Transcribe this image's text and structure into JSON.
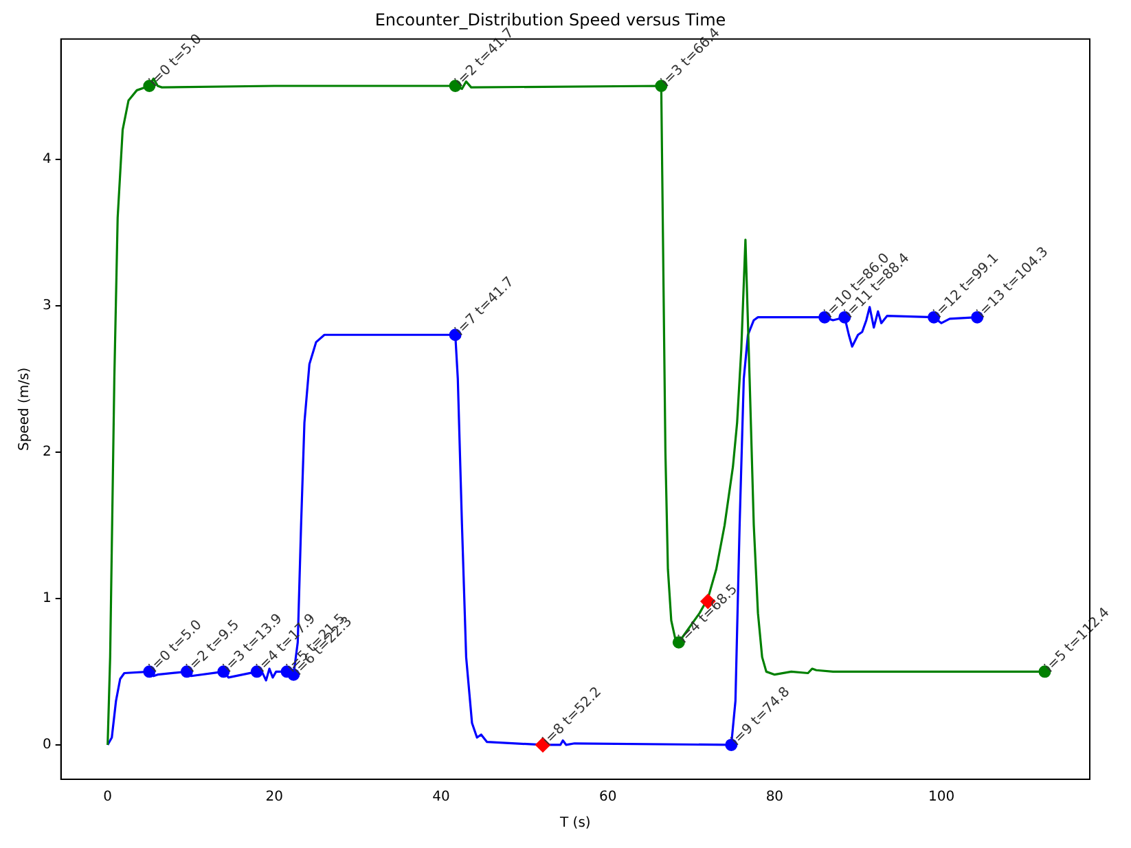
{
  "chart_data": {
    "type": "line",
    "title": "Encounter_Distribution Speed versus Time",
    "xlabel": "T (s)",
    "ylabel": "Speed (m/s)",
    "xlim": [
      -5.6,
      117.8
    ],
    "ylim": [
      -0.235,
      4.82
    ],
    "xticks": [
      0,
      20,
      40,
      60,
      80,
      100
    ],
    "yticks": [
      0,
      1,
      2,
      3,
      4
    ],
    "grid": false,
    "legend": false,
    "marker": "none",
    "line_style": "solid",
    "series": [
      {
        "color": "#008000",
        "x": [
          0,
          0.3,
          0.8,
          1.2,
          1.8,
          2.5,
          3.5,
          5,
          5.5,
          6,
          6.5,
          20,
          41.7,
          42.5,
          43,
          43.6,
          66.4,
          66.6,
          66.9,
          67.2,
          67.6,
          68.1,
          68.5,
          69.5,
          71,
          72,
          73,
          74,
          75,
          75.5,
          76,
          76.5,
          77,
          77.5,
          78,
          78.5,
          79,
          80,
          82,
          84,
          84.5,
          85,
          87,
          112.4
        ],
        "values": [
          0,
          0.6,
          2.5,
          3.6,
          4.2,
          4.4,
          4.47,
          4.5,
          4.55,
          4.5,
          4.49,
          4.5,
          4.5,
          4.48,
          4.53,
          4.49,
          4.5,
          3.5,
          2.0,
          1.2,
          0.85,
          0.72,
          0.7,
          0.78,
          0.9,
          1.0,
          1.2,
          1.5,
          1.9,
          2.2,
          2.7,
          3.45,
          2.5,
          1.5,
          0.9,
          0.6,
          0.5,
          0.48,
          0.5,
          0.49,
          0.52,
          0.51,
          0.5,
          0.5
        ]
      },
      {
        "color": "#0000ff",
        "x": [
          0,
          0.5,
          1,
          1.5,
          2,
          5,
          5.5,
          6,
          9.5,
          10,
          13.9,
          14.5,
          17.9,
          18.5,
          19,
          19.4,
          19.8,
          20.2,
          21.5,
          22.3,
          22.8,
          23.2,
          23.6,
          24.2,
          25,
          26,
          41.7,
          42,
          42.5,
          43,
          43.7,
          44.3,
          44.8,
          45.5,
          52.2,
          54.3,
          54.6,
          55,
          56,
          74.8,
          75.3,
          75.8,
          76.3,
          76.8,
          77.5,
          78,
          86,
          87,
          88.4,
          88.9,
          89.3,
          90,
          90.5,
          91,
          91.4,
          91.9,
          92.4,
          92.8,
          93.5,
          99.1,
          100,
          101,
          104.3
        ],
        "values": [
          0,
          0.05,
          0.3,
          0.45,
          0.49,
          0.5,
          0.47,
          0.48,
          0.5,
          0.47,
          0.5,
          0.46,
          0.5,
          0.5,
          0.44,
          0.52,
          0.46,
          0.5,
          0.5,
          0.48,
          0.7,
          1.5,
          2.2,
          2.6,
          2.75,
          2.8,
          2.8,
          2.5,
          1.5,
          0.6,
          0.15,
          0.05,
          0.07,
          0.02,
          0,
          0,
          0.03,
          0,
          0.01,
          0,
          0.3,
          1.5,
          2.5,
          2.8,
          2.9,
          2.92,
          2.92,
          2.9,
          2.92,
          2.8,
          2.72,
          2.8,
          2.82,
          2.9,
          2.99,
          2.85,
          2.96,
          2.88,
          2.93,
          2.92,
          2.88,
          2.91,
          2.92
        ]
      },
      {
        "type": "scatter",
        "marker": "circle",
        "color": "#008000",
        "x": [
          5,
          41.7,
          66.4,
          68.5,
          112.4
        ],
        "values": [
          4.5,
          4.5,
          4.5,
          0.7,
          0.5
        ]
      },
      {
        "type": "scatter",
        "marker": "circle",
        "color": "#0000ff",
        "x": [
          5,
          9.5,
          13.9,
          17.9,
          21.5,
          22.3,
          41.7,
          74.8,
          86,
          88.4,
          99.1,
          104.3
        ],
        "values": [
          0.5,
          0.5,
          0.5,
          0.5,
          0.5,
          0.48,
          2.8,
          0,
          2.92,
          2.92,
          2.92,
          2.92
        ]
      },
      {
        "type": "scatter",
        "marker": "diamond",
        "color": "#ff0000",
        "x": [
          52.2,
          72
        ],
        "values": [
          0,
          0.98
        ]
      }
    ],
    "annotations": [
      {
        "text": "i=0 t=5.0",
        "x": 5,
        "y": 4.5
      },
      {
        "text": "i=2 t=41.7",
        "x": 41.7,
        "y": 4.5
      },
      {
        "text": "i=3 t=66.4",
        "x": 66.4,
        "y": 4.5
      },
      {
        "text": "i=4 t=68.5",
        "x": 68.5,
        "y": 0.7
      },
      {
        "text": "i=5 t=112.4",
        "x": 112.4,
        "y": 0.5
      },
      {
        "text": "i=0 t=5.0",
        "x": 5,
        "y": 0.5
      },
      {
        "text": "i=2 t=9.5",
        "x": 9.5,
        "y": 0.5
      },
      {
        "text": "i=3 t=13.9",
        "x": 13.9,
        "y": 0.5
      },
      {
        "text": "i=4 t=17.9",
        "x": 17.9,
        "y": 0.5
      },
      {
        "text": "i=5 t=21.5",
        "x": 21.5,
        "y": 0.5
      },
      {
        "text": "i=6 t=22.3",
        "x": 22.3,
        "y": 0.48
      },
      {
        "text": "i=7 t=41.7",
        "x": 41.7,
        "y": 2.8
      },
      {
        "text": "i=8 t=52.2",
        "x": 52.2,
        "y": 0
      },
      {
        "text": "i=9 t=74.8",
        "x": 74.8,
        "y": 0
      },
      {
        "text": "i=10 t=86.0",
        "x": 86,
        "y": 2.92
      },
      {
        "text": "i=11 t=88.4",
        "x": 88.4,
        "y": 2.92
      },
      {
        "text": "i=12 t=99.1",
        "x": 99.1,
        "y": 2.92
      },
      {
        "text": "i=13 t=104.3",
        "x": 104.3,
        "y": 2.92
      }
    ]
  }
}
